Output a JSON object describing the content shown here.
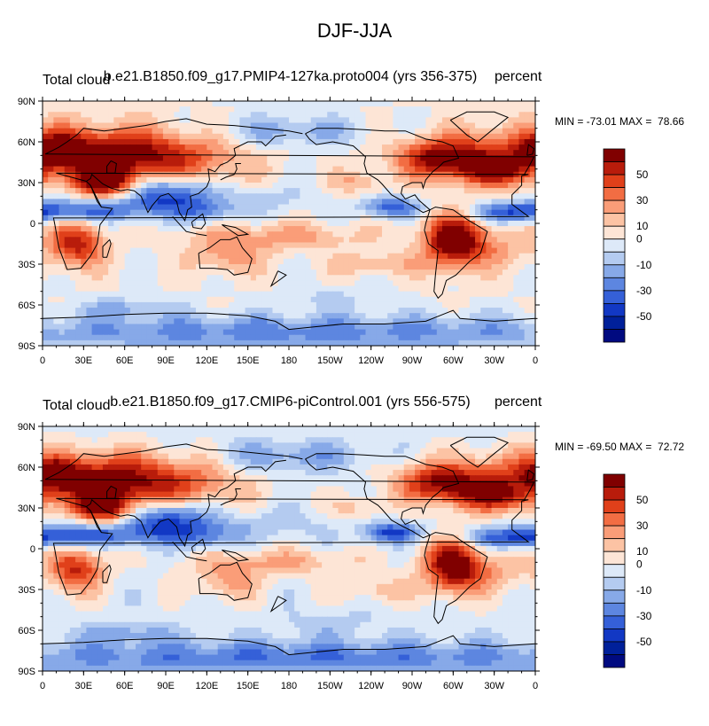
{
  "figure": {
    "title": "DJF-JJA"
  },
  "colorbar": {
    "labels": [
      "50",
      "30",
      "10",
      "0",
      "-10",
      "-30",
      "-50"
    ],
    "colors": [
      "#800000",
      "#b81c0b",
      "#e0401a",
      "#f26d43",
      "#fa9d78",
      "#fcc3a4",
      "#fde5d6",
      "#dde9f8",
      "#b4cbf0",
      "#87a9e8",
      "#5d86e0",
      "#3560d8",
      "#1238c4",
      "#00209a",
      "#000a80"
    ]
  },
  "axes": {
    "lat_labels": [
      "90N",
      "60N",
      "30N",
      "0",
      "30S",
      "60S",
      "90S"
    ],
    "lon_labels": [
      "0",
      "30E",
      "60E",
      "90E",
      "120E",
      "150E",
      "180",
      "150W",
      "120W",
      "90W",
      "60W",
      "30W",
      "0"
    ]
  },
  "chart_data": [
    {
      "type": "heatmap",
      "left_title": "Total cloud",
      "center_title": "b.e21.B1850.f09_g17.PMIP4-127ka.proto004 (yrs 356-375)",
      "right_title": "percent",
      "min_max_text": "MIN = -73.01 MAX =  78.66",
      "min": -73.01,
      "max": 78.66,
      "xlim": [
        0,
        360
      ],
      "ylim": [
        -90,
        90
      ],
      "variant": 0
    },
    {
      "type": "heatmap",
      "left_title": "Total cloud",
      "center_title": "b.e21.B1850.f09_g17.CMIP6-piControl.001 (yrs 556-575)",
      "right_title": "percent",
      "min_max_text": "MIN = -69.50 MAX =  72.72",
      "min": -69.5,
      "max": 72.72,
      "xlim": [
        0,
        360
      ],
      "ylim": [
        -90,
        90
      ],
      "variant": 1
    }
  ]
}
